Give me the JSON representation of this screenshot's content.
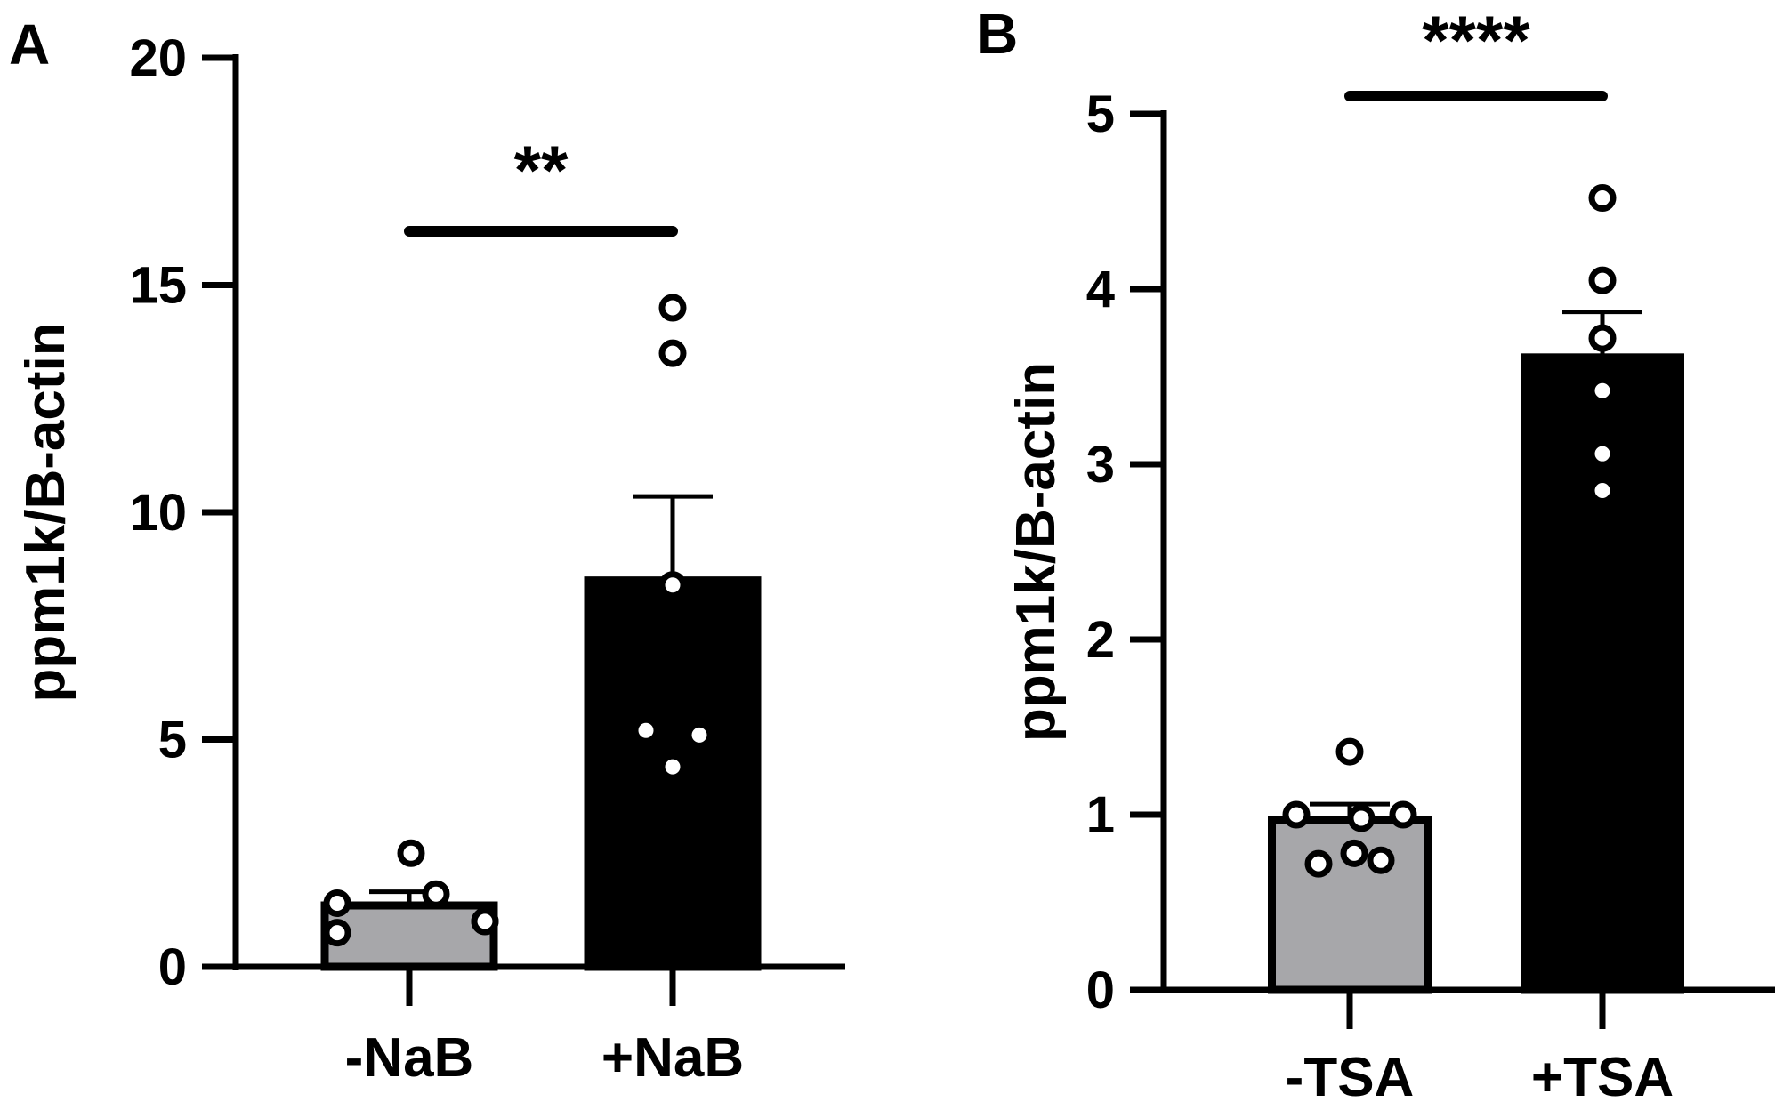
{
  "chart_data": [
    {
      "type": "bar",
      "panel_label": "A",
      "categories": [
        "-NaB",
        "+NaB"
      ],
      "values": [
        1.35,
        8.5
      ],
      "errors": [
        0.3,
        1.85
      ],
      "points": [
        [
          1.4,
          0.75,
          2.5,
          1.6,
          1.0,
          1.0
        ],
        [
          14.5,
          13.5,
          8.4,
          5.2,
          5.1,
          4.4
        ]
      ],
      "bar_colors": [
        "#a7a7aa",
        "#000000"
      ],
      "ylabel": "ppm1k/B-actin",
      "ylim": [
        0,
        20
      ],
      "yticks": [
        0,
        5,
        10,
        15,
        20
      ],
      "ytick_labels": [
        "0",
        "5",
        "10",
        "15",
        "20"
      ],
      "significance": {
        "label": "**",
        "from": 0,
        "to": 1
      },
      "grid": false
    },
    {
      "type": "bar",
      "panel_label": "B",
      "categories": [
        "-TSA",
        "+TSA"
      ],
      "values": [
        0.97,
        3.61
      ],
      "errors": [
        0.09,
        0.26
      ],
      "points": [
        [
          1.36,
          1.0,
          1.0,
          0.98,
          0.72,
          0.74,
          0.78
        ],
        [
          4.52,
          4.05,
          3.72,
          3.42,
          3.06,
          2.85
        ]
      ],
      "bar_colors": [
        "#a7a7aa",
        "#000000"
      ],
      "ylabel": "ppm1k/B-actin",
      "ylim": [
        0,
        5
      ],
      "yticks": [
        0,
        1,
        2,
        3,
        4,
        5
      ],
      "ytick_labels": [
        "0",
        "1",
        "2",
        "3",
        "4",
        "5"
      ],
      "significance": {
        "label": "****",
        "from": 0,
        "to": 1
      },
      "grid": false
    }
  ]
}
